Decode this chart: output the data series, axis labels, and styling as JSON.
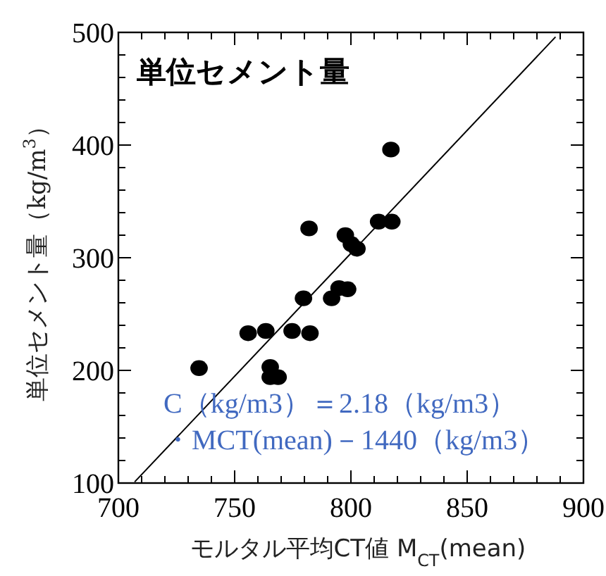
{
  "chart_data": {
    "type": "scatter",
    "title": "単位セメント量",
    "xlabel": "モルタル平均CT値 M$_{CT}$(mean)",
    "ylabel": "単位セメント量（kg/m$^{3}$）",
    "annotations": [
      "C（kg/m3）＝2.18（kg/m3）",
      "・MCT(mean)－1440（kg/m3）"
    ],
    "xlim": [
      700,
      900
    ],
    "ylim": [
      100,
      500
    ],
    "xticks": [
      700,
      {
        "value": 710,
        "label": null
      },
      {
        "value": 720,
        "label": null
      },
      {
        "value": 730,
        "label": null
      },
      {
        "value": 740,
        "label": null
      },
      750,
      {
        "value": 760,
        "label": null
      },
      {
        "value": 770,
        "label": null
      },
      {
        "value": 780,
        "label": null
      },
      {
        "value": 790,
        "label": null
      },
      800,
      {
        "value": 810,
        "label": null
      },
      {
        "value": 820,
        "label": null
      },
      {
        "value": 830,
        "label": null
      },
      {
        "value": 840,
        "label": null
      },
      850,
      {
        "value": 860,
        "label": null
      },
      {
        "value": 870,
        "label": null
      },
      {
        "value": 880,
        "label": null
      },
      {
        "value": 890,
        "label": null
      },
      900
    ],
    "yticks": [
      100,
      {
        "value": 120,
        "label": null
      },
      {
        "value": 140,
        "label": null
      },
      {
        "value": 160,
        "label": null
      },
      {
        "value": 180,
        "label": null
      },
      200,
      {
        "value": 220,
        "label": null
      },
      {
        "value": 240,
        "label": null
      },
      {
        "value": 260,
        "label": null
      },
      {
        "value": 280,
        "label": null
      },
      300,
      {
        "value": 320,
        "label": null
      },
      {
        "value": 340,
        "label": null
      },
      {
        "value": 360,
        "label": null
      },
      {
        "value": 380,
        "label": null
      },
      400,
      {
        "value": 420,
        "label": null
      },
      {
        "value": 440,
        "label": null
      },
      {
        "value": 460,
        "label": null
      },
      {
        "value": 480,
        "label": null
      },
      500
    ],
    "marker": "circle",
    "grid": false,
    "series": [
      {
        "color": "#000000",
        "x": [
          817.2,
          811.9,
          817.6,
          782.0,
          797.6,
          800.2,
          802.6,
          779.6,
          791.7,
          794.9,
          798.6,
          755.8,
          763.4,
          774.7,
          782.4,
          734.7,
          765.3,
          765.3,
          768.7
        ],
        "values": [
          396,
          332,
          332,
          326,
          320,
          312,
          308,
          264,
          264,
          273,
          272,
          233,
          235,
          235,
          233,
          202,
          203,
          194,
          194
        ]
      },
      {
        "type": "line",
        "marker": "none",
        "color": "#000000",
        "x": [
          707,
          888
        ],
        "values": [
          101,
          496
        ]
      }
    ]
  }
}
